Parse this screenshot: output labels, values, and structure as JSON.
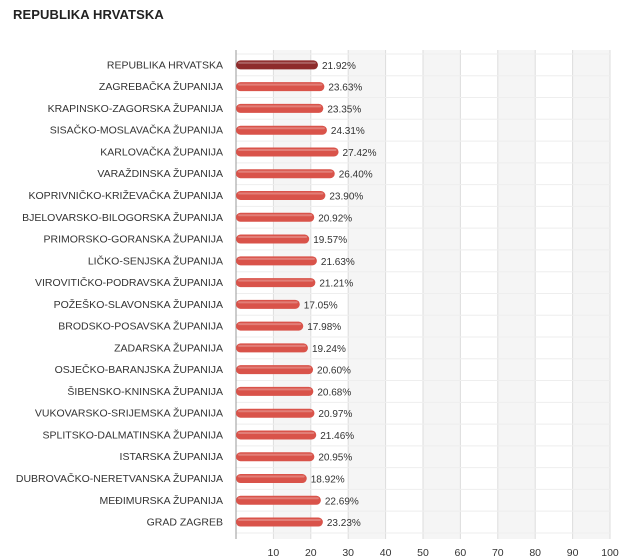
{
  "title": "REPUBLIKA HRVATSKA",
  "colors": {
    "bar": "#d9534a",
    "bar_highlight": "#8e2b2b",
    "band": "#f5f5f5",
    "grid": "#dddddd",
    "axis": "#999999"
  },
  "chart_data": {
    "type": "bar",
    "orientation": "horizontal",
    "categories": [
      "REPUBLIKA HRVATSKA",
      "ZAGREBAČKA ŽUPANIJA",
      "KRAPINSKO-ZAGORSKA ŽUPANIJA",
      "SISAČKO-MOSLAVAČKA ŽUPANIJA",
      "KARLOVAČKA ŽUPANIJA",
      "VARAŽDINSKA ŽUPANIJA",
      "KOPRIVNIČKO-KRIŽEVAČKA ŽUPANIJA",
      "BJELOVARSKO-BILOGORSKA ŽUPANIJA",
      "PRIMORSKO-GORANSKA ŽUPANIJA",
      "LIČKO-SENJSKA ŽUPANIJA",
      "VIROVITIČKO-PODRAVSKA ŽUPANIJA",
      "POŽEŠKO-SLAVONSKA ŽUPANIJA",
      "BRODSKO-POSAVSKA ŽUPANIJA",
      "ZADARSKA ŽUPANIJA",
      "OSJEČKO-BARANJSKA ŽUPANIJA",
      "ŠIBENSKO-KNINSKA ŽUPANIJA",
      "VUKOVARSKO-SRIJEMSKA ŽUPANIJA",
      "SPLITSKO-DALMATINSKA ŽUPANIJA",
      "ISTARSKA ŽUPANIJA",
      "DUBROVAČKO-NERETVANSKA ŽUPANIJA",
      "MEĐIMURSKA ŽUPANIJA",
      "GRAD ZAGREB"
    ],
    "values": [
      21.92,
      23.63,
      23.35,
      24.31,
      27.42,
      26.4,
      23.9,
      20.92,
      19.57,
      21.63,
      21.21,
      17.05,
      17.98,
      19.24,
      20.6,
      20.68,
      20.97,
      21.46,
      20.95,
      18.92,
      22.69,
      23.23
    ],
    "value_labels": [
      "21.92%",
      "23.63%",
      "23.35%",
      "24.31%",
      "27.42%",
      "26.40%",
      "23.90%",
      "20.92%",
      "19.57%",
      "21.63%",
      "21.21%",
      "17.05%",
      "17.98%",
      "19.24%",
      "20.60%",
      "20.68%",
      "20.97%",
      "21.46%",
      "20.95%",
      "18.92%",
      "22.69%",
      "23.23%"
    ],
    "highlight_index": 0,
    "xlim": [
      0,
      100
    ],
    "xticks": [
      10,
      20,
      30,
      40,
      50,
      60,
      70,
      80,
      90,
      100
    ],
    "xtick_labels": [
      "10",
      "20",
      "30",
      "40",
      "50",
      "60",
      "70",
      "80",
      "90",
      "100"
    ],
    "grid": true,
    "legend": "none"
  }
}
